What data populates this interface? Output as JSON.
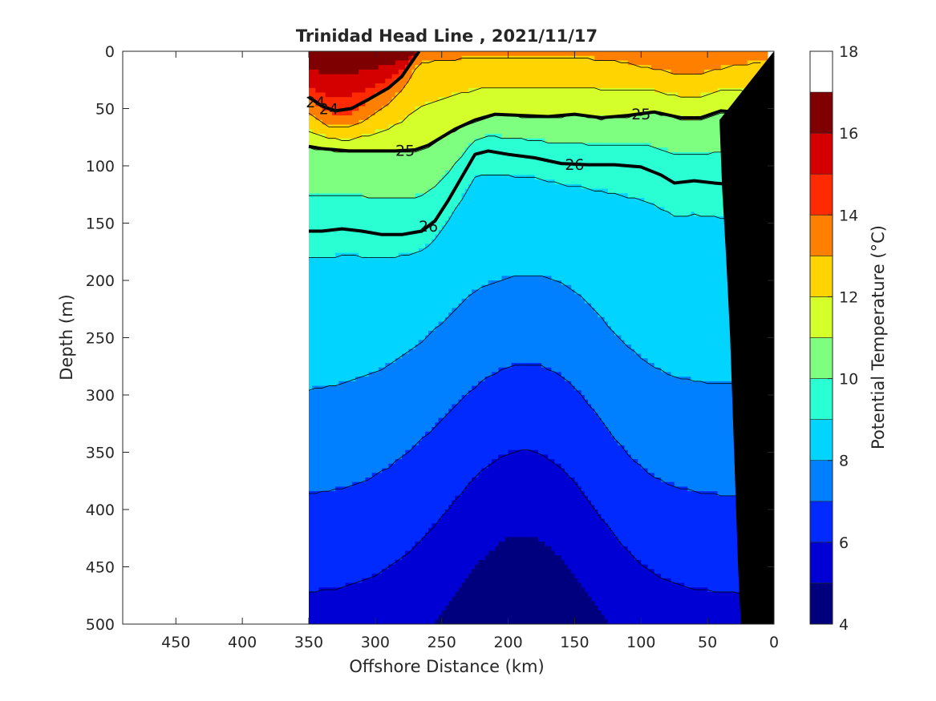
{
  "chart_data": {
    "type": "heatmap",
    "title": "Trinidad Head Line , 2021/11/17",
    "xlabel": "Offshore Distance (km)",
    "ylabel": "Depth (m)",
    "colorbar_label": "Potential Temperature (°C)",
    "xlim": [
      490,
      0
    ],
    "ylim": [
      500,
      0
    ],
    "x_ticks": [
      450,
      400,
      350,
      300,
      250,
      200,
      150,
      100,
      50,
      0
    ],
    "y_ticks": [
      0,
      50,
      100,
      150,
      200,
      250,
      300,
      350,
      400,
      450,
      500
    ],
    "colorbar_ticks": [
      4,
      6,
      8,
      10,
      12,
      14,
      16,
      18
    ],
    "colorbar_range": [
      4,
      18
    ],
    "colorbar_step": 1,
    "colors": [
      "#00007f",
      "#0000d4",
      "#002aff",
      "#0080ff",
      "#00d4ff",
      "#2affd4",
      "#7fff80",
      "#d4ff2a",
      "#ffd400",
      "#ff8000",
      "#ff2a00",
      "#d40000",
      "#7f0000"
    ],
    "section_extent_km": [
      350,
      10
    ],
    "density_contours": [
      {
        "level": "24",
        "depth_profile": [
          [
            350,
            40
          ],
          [
            340,
            48
          ],
          [
            330,
            52
          ],
          [
            318,
            50
          ],
          [
            305,
            42
          ],
          [
            290,
            32
          ],
          [
            280,
            22
          ],
          [
            270,
            5
          ],
          [
            267,
            0
          ]
        ]
      },
      {
        "level": "25",
        "depth_profile": [
          [
            350,
            83
          ],
          [
            340,
            85
          ],
          [
            320,
            87
          ],
          [
            300,
            87
          ],
          [
            285,
            87
          ],
          [
            270,
            86
          ],
          [
            260,
            82
          ],
          [
            250,
            75
          ],
          [
            240,
            68
          ],
          [
            225,
            60
          ],
          [
            210,
            55
          ],
          [
            190,
            56
          ],
          [
            170,
            57
          ],
          [
            150,
            55
          ],
          [
            130,
            58
          ],
          [
            110,
            56
          ],
          [
            90,
            53
          ],
          [
            70,
            58
          ],
          [
            55,
            58
          ],
          [
            40,
            52
          ],
          [
            30,
            53
          ],
          [
            20,
            58
          ],
          [
            10,
            63
          ]
        ]
      },
      {
        "level": "26",
        "depth_profile": [
          [
            350,
            157
          ],
          [
            340,
            157
          ],
          [
            325,
            155
          ],
          [
            310,
            157
          ],
          [
            295,
            160
          ],
          [
            280,
            160
          ],
          [
            265,
            157
          ],
          [
            255,
            148
          ],
          [
            245,
            130
          ],
          [
            235,
            110
          ],
          [
            225,
            90
          ],
          [
            215,
            87
          ],
          [
            200,
            90
          ],
          [
            180,
            93
          ],
          [
            160,
            98
          ],
          [
            140,
            99
          ],
          [
            120,
            99
          ],
          [
            100,
            101
          ],
          [
            85,
            108
          ],
          [
            75,
            115
          ],
          [
            60,
            113
          ],
          [
            45,
            115
          ],
          [
            35,
            116
          ],
          [
            25,
            115
          ],
          [
            15,
            107
          ],
          [
            10,
            105
          ]
        ]
      }
    ]
  }
}
